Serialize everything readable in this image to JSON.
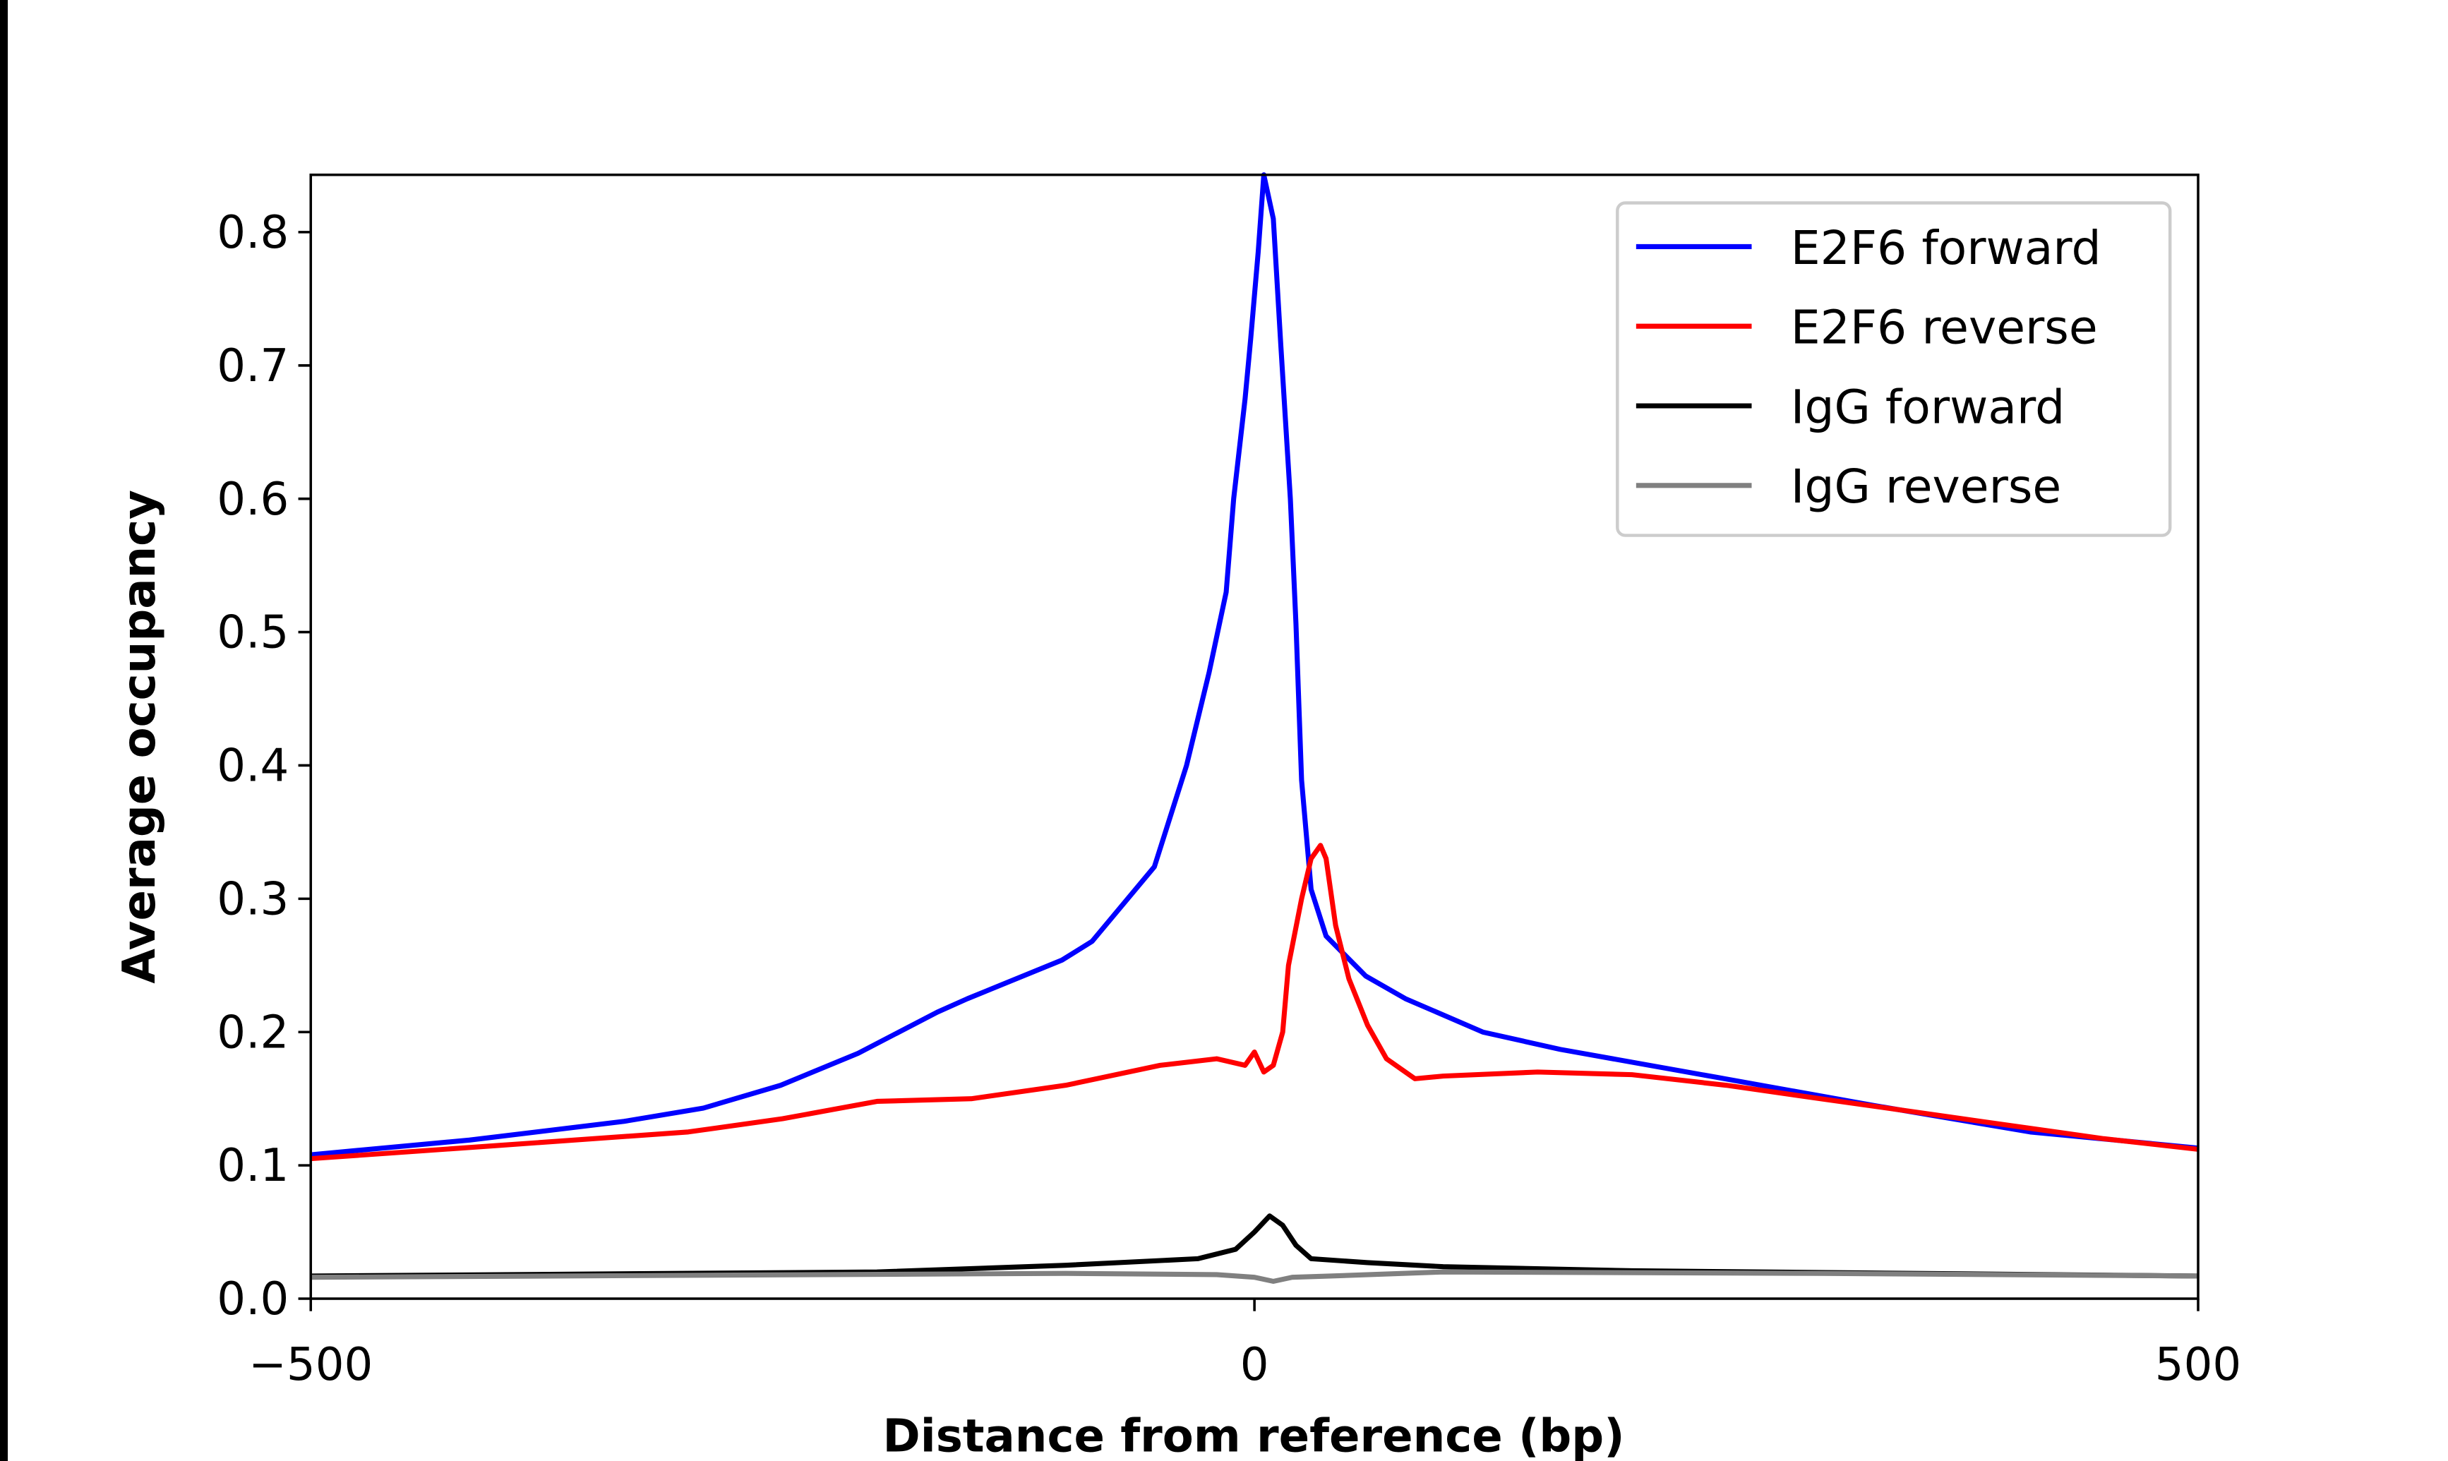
{
  "chart_data": {
    "type": "line",
    "title": "",
    "xlabel": "Distance from reference (bp)",
    "ylabel": "Average occupancy",
    "xlim": [
      -500,
      500
    ],
    "ylim": [
      0,
      0.843
    ],
    "xticks": [
      -500,
      0,
      500
    ],
    "xtick_labels": [
      "−500",
      "0",
      "500"
    ],
    "yticks": [
      0.0,
      0.1,
      0.2,
      0.3,
      0.4,
      0.5,
      0.6,
      0.7,
      0.8
    ],
    "ytick_labels": [
      "0.0",
      "0.1",
      "0.2",
      "0.3",
      "0.4",
      "0.5",
      "0.6",
      "0.7",
      "0.8"
    ],
    "grid": false,
    "legend_position": "top-right",
    "series": [
      {
        "name": "E2F6 forward",
        "color": "#0000ff",
        "x": [
          -500,
          -416,
          -334,
          -292,
          -251,
          -210,
          -168,
          -152,
          -102,
          -86,
          -53,
          -36,
          -24,
          -15,
          -11,
          -5,
          -2,
          2,
          5,
          10,
          14,
          19,
          22,
          25,
          30,
          38,
          59,
          80,
          121,
          162,
          245,
          328,
          411,
          500
        ],
        "y": [
          0.108,
          0.119,
          0.133,
          0.143,
          0.16,
          0.184,
          0.215,
          0.225,
          0.254,
          0.268,
          0.324,
          0.4,
          0.47,
          0.53,
          0.6,
          0.675,
          0.72,
          0.785,
          0.843,
          0.81,
          0.715,
          0.6,
          0.506,
          0.389,
          0.307,
          0.272,
          0.242,
          0.225,
          0.2,
          0.187,
          0.166,
          0.145,
          0.125,
          0.113
        ]
      },
      {
        "name": "E2F6 reverse",
        "color": "#ff0000",
        "x": [
          -500,
          -400,
          -300,
          -250,
          -200,
          -150,
          -100,
          -50,
          -20,
          -5,
          0,
          5,
          10,
          15,
          18,
          25,
          30,
          35,
          38,
          43,
          50,
          60,
          70,
          85,
          100,
          150,
          200,
          250,
          300,
          350,
          400,
          450,
          500
        ],
        "y": [
          0.105,
          0.115,
          0.125,
          0.135,
          0.148,
          0.15,
          0.16,
          0.175,
          0.18,
          0.175,
          0.185,
          0.17,
          0.175,
          0.2,
          0.25,
          0.3,
          0.33,
          0.34,
          0.33,
          0.28,
          0.24,
          0.205,
          0.18,
          0.165,
          0.167,
          0.17,
          0.168,
          0.16,
          0.15,
          0.14,
          0.13,
          0.12,
          0.112
        ]
      },
      {
        "name": "IgG forward",
        "color": "#000000",
        "x": [
          -500,
          -200,
          -100,
          -30,
          -10,
          0,
          8,
          15,
          22,
          30,
          60,
          100,
          200,
          500
        ],
        "y": [
          0.017,
          0.02,
          0.025,
          0.03,
          0.037,
          0.05,
          0.062,
          0.055,
          0.04,
          0.03,
          0.027,
          0.024,
          0.021,
          0.017
        ]
      },
      {
        "name": "IgG reverse",
        "color": "#808080",
        "x": [
          -500,
          -100,
          -20,
          0,
          10,
          20,
          40,
          100,
          300,
          500
        ],
        "y": [
          0.016,
          0.019,
          0.018,
          0.016,
          0.013,
          0.016,
          0.017,
          0.02,
          0.019,
          0.017
        ]
      }
    ]
  }
}
